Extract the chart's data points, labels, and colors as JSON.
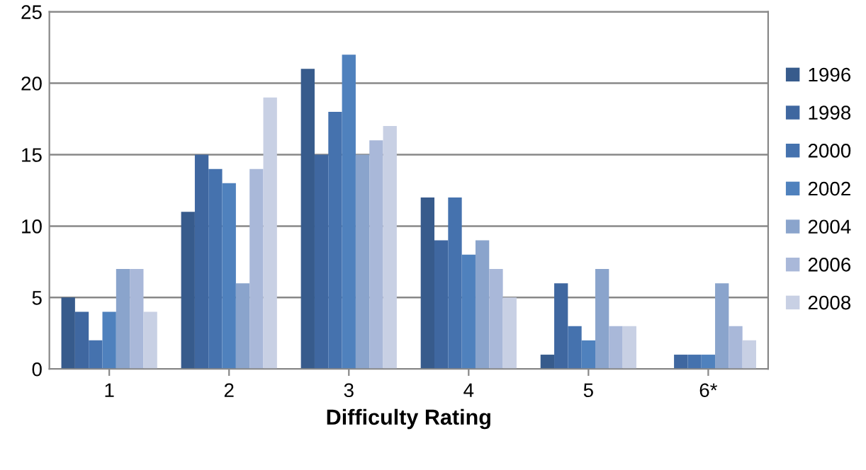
{
  "chart_data": {
    "type": "bar",
    "xlabel": "Difficulty Rating",
    "categories": [
      "1",
      "2",
      "3",
      "4",
      "5",
      "6*"
    ],
    "series": [
      {
        "name": "1996",
        "color": "#375b8c",
        "values": [
          5,
          11,
          21,
          12,
          1,
          0
        ]
      },
      {
        "name": "1998",
        "color": "#3f67a0",
        "values": [
          4,
          15,
          15,
          9,
          6,
          1
        ]
      },
      {
        "name": "2000",
        "color": "#4572ae",
        "values": [
          2,
          14,
          18,
          12,
          3,
          1
        ]
      },
      {
        "name": "2002",
        "color": "#4f81bd",
        "values": [
          4,
          13,
          22,
          8,
          2,
          1
        ]
      },
      {
        "name": "2004",
        "color": "#8aa4cc",
        "values": [
          7,
          6,
          15,
          9,
          7,
          6
        ]
      },
      {
        "name": "2006",
        "color": "#a9b8d9",
        "values": [
          7,
          14,
          16,
          7,
          3,
          3
        ]
      },
      {
        "name": "2008",
        "color": "#c8d0e4",
        "values": [
          4,
          19,
          17,
          5,
          3,
          2
        ]
      }
    ],
    "ylim": [
      0,
      25
    ],
    "yticks": [
      0,
      5,
      10,
      15,
      20,
      25
    ],
    "grid": "y",
    "legend": "right"
  }
}
